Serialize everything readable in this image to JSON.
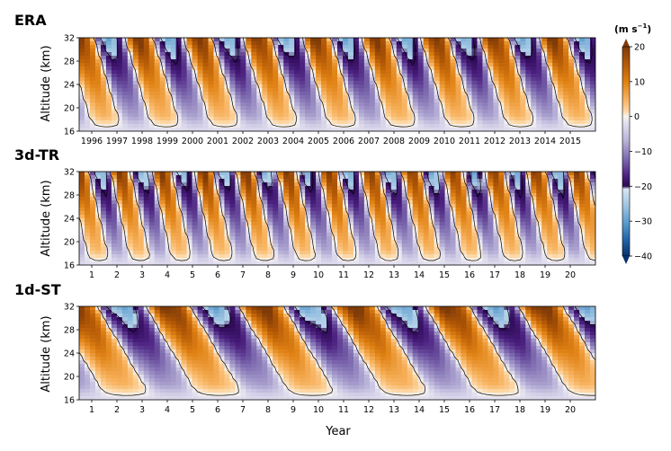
{
  "colors": {
    "east_max": "#7f3b08",
    "east_mid": "#e08214",
    "east_light": "#fdd09a",
    "neutral": "#f6f3ee",
    "west_light_violet": "#b8b2d8",
    "west_dark": "#2d0a55",
    "west_blue_light": "#b6d2ea",
    "west_blue_mid": "#3a7fbd",
    "west_blue_max": "#08306b",
    "contour": "#000000"
  },
  "colorbar": {
    "unit_prefix": "(m s",
    "unit_exp": "−1",
    "unit_suffix": ")",
    "range": [
      -40,
      20
    ],
    "ticks": [
      "20",
      "10",
      "0",
      "−10",
      "−20",
      "−30",
      "−40"
    ]
  },
  "xlabel": "Year",
  "chart_data": [
    {
      "type": "heatmap",
      "title": "ERA",
      "ylabel": "Altitude  (km)",
      "ylim": [
        16,
        32
      ],
      "yticks": [
        "16",
        "20",
        "24",
        "28",
        "32"
      ],
      "xticks": [
        "1996",
        "1997",
        "1998",
        "1999",
        "2000",
        "2001",
        "2002",
        "2003",
        "2004",
        "2005",
        "2006",
        "2007",
        "2008",
        "2009",
        "2010",
        "2011",
        "2012",
        "2013",
        "2014",
        "2015"
      ],
      "qbo_period_years": 2.35,
      "phase_descent_years": 1.15,
      "band_onset_years": [
        0.1,
        2.4,
        4.8,
        7.1,
        9.1,
        11.5,
        13.6,
        16.0,
        18.2
      ]
    },
    {
      "type": "heatmap",
      "title": "3d-TR",
      "ylabel": "Altitude  (km)",
      "ylim": [
        16,
        32
      ],
      "yticks": [
        "16",
        "20",
        "24",
        "28",
        "32"
      ],
      "xticks": [
        "1",
        "2",
        "3",
        "4",
        "5",
        "6",
        "7",
        "8",
        "9",
        "10",
        "11",
        "12",
        "13",
        "14",
        "15",
        "16",
        "17",
        "18",
        "19",
        "20"
      ],
      "qbo_period_years": 1.65,
      "phase_descent_years": 0.85,
      "band_onset_years": [
        0.2,
        1.85,
        3.5,
        5.15,
        6.8,
        8.45,
        10.1,
        11.75,
        13.4,
        15.05,
        16.7,
        18.35
      ]
    },
    {
      "type": "heatmap",
      "title": "1d-ST",
      "ylabel": "Altitude  (km)",
      "ylim": [
        16,
        32
      ],
      "yticks": [
        "16",
        "20",
        "24",
        "28",
        "32"
      ],
      "xticks": [
        "1",
        "2",
        "3",
        "4",
        "5",
        "6",
        "7",
        "8",
        "9",
        "10",
        "11",
        "12",
        "13",
        "14",
        "15",
        "16",
        "17",
        "18",
        "19",
        "20"
      ],
      "qbo_period_years": 3.7,
      "phase_descent_years": 2.2,
      "band_onset_years": [
        0.0,
        3.8,
        7.5,
        11.2,
        14.9,
        18.4
      ]
    }
  ]
}
